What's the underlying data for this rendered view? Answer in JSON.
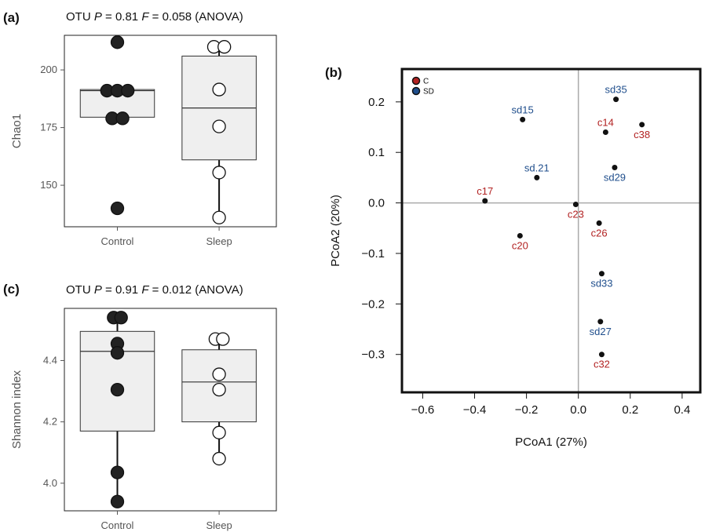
{
  "chart_data": [
    {
      "panel": "(a)",
      "type": "box",
      "title": "OTU P = 0.81 F = 0.058 (ANOVA)",
      "title_parts": {
        "prefix": "OTU ",
        "p": "P",
        "p_val": " = 0.81 ",
        "f": "F",
        "f_val": " = 0.058 (ANOVA)"
      },
      "ylabel": "Chao1",
      "ylim": [
        132,
        215
      ],
      "yticks": [
        150,
        175,
        200
      ],
      "categories": [
        "Control",
        "Sleep"
      ],
      "groups": [
        {
          "name": "Control",
          "q1": 179.5,
          "median": 191,
          "q3": 191.5,
          "whisker_low": 179.5,
          "whisker_high": 191.5,
          "fill": "#222222",
          "points": [
            212,
            191,
            191,
            191,
            179,
            179,
            140
          ],
          "jitter": [
            0,
            -0.28,
            0,
            0.28,
            -0.14,
            0.14,
            0
          ]
        },
        {
          "name": "Sleep",
          "q1": 161,
          "median": 183.5,
          "q3": 206,
          "whisker_low": 136,
          "whisker_high": 210,
          "fill": "#ffffff",
          "points": [
            210,
            210,
            191.5,
            175.5,
            155.5,
            136
          ],
          "jitter": [
            -0.14,
            0.14,
            0,
            0,
            0,
            0
          ]
        }
      ]
    },
    {
      "panel": "(c)",
      "type": "box",
      "title": "OTU P = 0.91 F = 0.012 (ANOVA)",
      "title_parts": {
        "prefix": "OTU ",
        "p": "P",
        "p_val": " = 0.91 ",
        "f": "F",
        "f_val": " = 0.012 (ANOVA)"
      },
      "ylabel": "Shannon index",
      "ylim": [
        3.91,
        4.57
      ],
      "yticks": [
        4.0,
        4.2,
        4.4
      ],
      "categories": [
        "Control",
        "Sleep"
      ],
      "groups": [
        {
          "name": "Control",
          "q1": 4.17,
          "median": 4.43,
          "q3": 4.495,
          "whisker_low": 3.94,
          "whisker_high": 4.545,
          "fill": "#222222",
          "points": [
            4.54,
            4.54,
            4.455,
            4.425,
            4.305,
            4.035,
            3.94
          ],
          "jitter": [
            -0.1,
            0.1,
            0,
            0,
            0,
            0,
            0
          ]
        },
        {
          "name": "Sleep",
          "q1": 4.2,
          "median": 4.33,
          "q3": 4.435,
          "whisker_low": 4.08,
          "whisker_high": 4.47,
          "fill": "#ffffff",
          "points": [
            4.47,
            4.47,
            4.355,
            4.305,
            4.165,
            4.08
          ],
          "jitter": [
            -0.1,
            0.1,
            0,
            0,
            0,
            0
          ]
        }
      ]
    },
    {
      "panel": "(b)",
      "type": "scatter",
      "xlabel": "PCoA1 (27%)",
      "ylabel": "PCoA2 (20%)",
      "xlim": [
        -0.68,
        0.47
      ],
      "ylim": [
        -0.375,
        0.265
      ],
      "xticks": [
        -0.6,
        -0.4,
        -0.2,
        0.0,
        0.2,
        0.4
      ],
      "xtick_labels": [
        "−0.6",
        "−0.4",
        "−0.2",
        "0.0",
        "0.2",
        "0.4"
      ],
      "yticks": [
        0.2,
        0.1,
        0.0,
        -0.1,
        -0.2,
        -0.3
      ],
      "ytick_labels": [
        "0.2",
        "0.1",
        "0.0",
        "−0.1",
        "−0.2",
        "−0.3"
      ],
      "legend": {
        "placement": "top-left",
        "entries": [
          {
            "name": "C",
            "color": "#b22222"
          },
          {
            "name": "SD",
            "color": "#1f4e8c"
          }
        ]
      },
      "points": [
        {
          "label": "sd35",
          "x": 0.145,
          "y": 0.205,
          "group": "SD",
          "pos": "above"
        },
        {
          "label": "sd15",
          "x": -0.215,
          "y": 0.165,
          "group": "SD",
          "pos": "above"
        },
        {
          "label": "c14",
          "x": 0.105,
          "y": 0.14,
          "group": "C",
          "pos": "above"
        },
        {
          "label": "c38",
          "x": 0.245,
          "y": 0.155,
          "group": "C",
          "pos": "below"
        },
        {
          "label": "sd29",
          "x": 0.14,
          "y": 0.07,
          "group": "SD",
          "pos": "below"
        },
        {
          "label": "sd.21",
          "x": -0.16,
          "y": 0.05,
          "group": "SD",
          "pos": "above"
        },
        {
          "label": "c17",
          "x": -0.36,
          "y": 0.004,
          "group": "C",
          "pos": "above"
        },
        {
          "label": "c23",
          "x": -0.01,
          "y": -0.003,
          "group": "C",
          "pos": "below"
        },
        {
          "label": "c26",
          "x": 0.08,
          "y": -0.04,
          "group": "C",
          "pos": "below"
        },
        {
          "label": "c20",
          "x": -0.225,
          "y": -0.065,
          "group": "C",
          "pos": "below"
        },
        {
          "label": "sd33",
          "x": 0.09,
          "y": -0.14,
          "group": "SD",
          "pos": "below"
        },
        {
          "label": "sd27",
          "x": 0.085,
          "y": -0.235,
          "group": "SD",
          "pos": "below"
        },
        {
          "label": "c32",
          "x": 0.09,
          "y": -0.3,
          "group": "C",
          "pos": "below"
        }
      ]
    }
  ]
}
